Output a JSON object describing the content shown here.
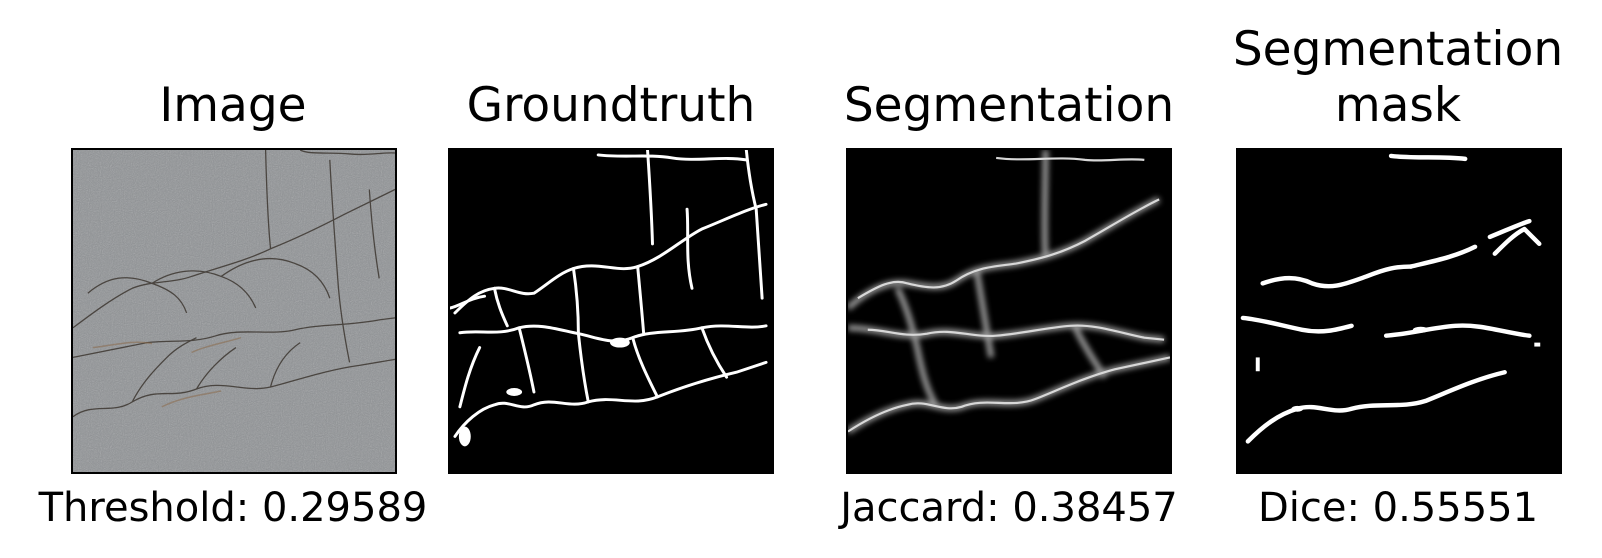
{
  "panels": [
    {
      "id": "image",
      "title": "Image",
      "caption": "Threshold: 0.29589"
    },
    {
      "id": "groundtruth",
      "title": "Groundtruth",
      "caption": ""
    },
    {
      "id": "segmentation",
      "title": "Segmentation",
      "caption": "Jaccard: 0.38457"
    },
    {
      "id": "mask",
      "title_line1": "Segmentation",
      "title_line2": "mask",
      "caption": "Dice: 0.55551"
    }
  ],
  "colors": {
    "asphalt": "#8f9295",
    "crack_dark": "#4a4540",
    "mask_bg": "#000000",
    "mask_fg": "#ffffff"
  }
}
